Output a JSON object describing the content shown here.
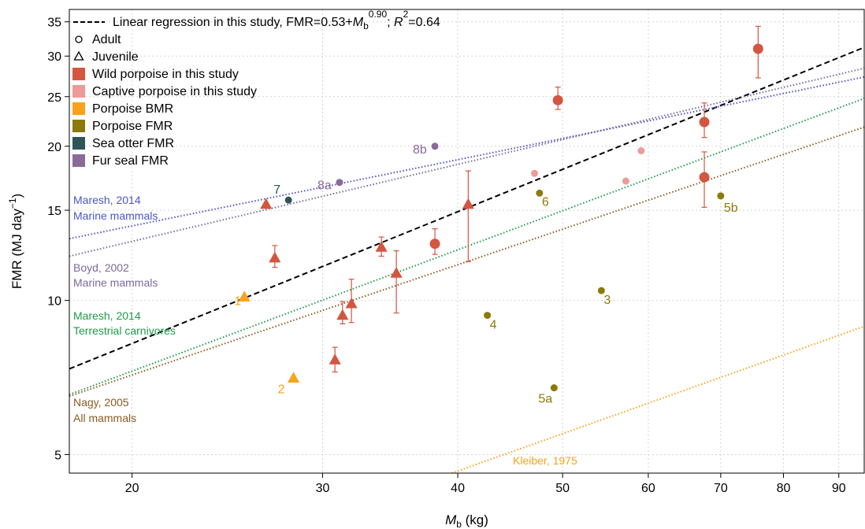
{
  "chart_data": {
    "type": "scatter",
    "xlabel": "Mb (kg)",
    "ylabel": "FMR (MJ day−1)",
    "x_scale": "log",
    "y_scale": "log",
    "xlim": [
      17.5,
      95
    ],
    "ylim": [
      4.6,
      37
    ],
    "x_ticks": [
      20,
      30,
      40,
      50,
      60,
      70,
      80,
      90
    ],
    "y_ticks": [
      5,
      10,
      15,
      20,
      25,
      30,
      35
    ],
    "grid": true,
    "legend_position": "top-left",
    "legend": [
      {
        "key": "regression",
        "marker": "dashed-line",
        "color": "#000000",
        "parts": [
          {
            "t": "Linear regression in this study, FMR=0.53+"
          },
          {
            "t": "M",
            "style": "italic"
          },
          {
            "t": "b",
            "style": "sub"
          },
          {
            "t": "0.90",
            "style": "sup"
          },
          {
            "t": "; "
          },
          {
            "t": "R",
            "style": "italic"
          },
          {
            "t": "2",
            "style": "sup"
          },
          {
            "t": "=0.64"
          }
        ]
      },
      {
        "key": "adult",
        "marker": "open-circle",
        "color": "#000000",
        "label": "Adult"
      },
      {
        "key": "juvenile",
        "marker": "open-triangle",
        "color": "#000000",
        "label": "Juvenile"
      },
      {
        "key": "wild",
        "marker": "square",
        "color": "#d35640",
        "label": "Wild porpoise in this study"
      },
      {
        "key": "captive",
        "marker": "square",
        "color": "#ee9a98",
        "label": "Captive porpoise in this study"
      },
      {
        "key": "bmr",
        "marker": "square",
        "color": "#f8a31b",
        "label": "Porpoise BMR"
      },
      {
        "key": "pfmr",
        "marker": "square",
        "color": "#8b7a0a",
        "label": "Porpoise FMR"
      },
      {
        "key": "otter",
        "marker": "square",
        "color": "#2f5458",
        "label": "Sea otter FMR"
      },
      {
        "key": "furseal",
        "marker": "square",
        "color": "#8a6a9b",
        "label": "Fur seal FMR"
      }
    ],
    "series": [
      {
        "name": "Wild porpoise in this study",
        "color": "#d35640",
        "points": [
          {
            "x": 26.6,
            "y": 15.4,
            "shape": "triangle"
          },
          {
            "x": 27.1,
            "y": 12.1,
            "shape": "triangle",
            "err": [
              11.6,
              12.8
            ]
          },
          {
            "x": 30.8,
            "y": 7.65,
            "shape": "triangle",
            "err": [
              7.25,
              8.1
            ]
          },
          {
            "x": 31.3,
            "y": 9.35,
            "shape": "triangle",
            "err": [
              9.0,
              9.95
            ]
          },
          {
            "x": 31.9,
            "y": 9.85,
            "shape": "triangle",
            "err": [
              9.05,
              11.0
            ]
          },
          {
            "x": 34.0,
            "y": 12.7,
            "shape": "triangle",
            "err": [
              12.2,
              13.3
            ]
          },
          {
            "x": 35.1,
            "y": 11.3,
            "shape": "triangle",
            "err": [
              9.45,
              12.5
            ]
          },
          {
            "x": 40.9,
            "y": 15.4,
            "shape": "triangle",
            "err": [
              11.9,
              17.9
            ]
          },
          {
            "x": 38.1,
            "y": 12.9,
            "shape": "circle",
            "err": [
              12.3,
              13.8
            ]
          },
          {
            "x": 49.5,
            "y": 24.6,
            "shape": "circle",
            "err": [
              23.6,
              26.1
            ]
          },
          {
            "x": 67.6,
            "y": 22.3,
            "shape": "circle",
            "err": [
              20.8,
              24.3
            ]
          },
          {
            "x": 67.6,
            "y": 17.4,
            "shape": "circle",
            "err": [
              15.2,
              19.5
            ]
          },
          {
            "x": 75.8,
            "y": 31.0,
            "shape": "circle",
            "err": [
              27.2,
              34.3
            ]
          }
        ]
      },
      {
        "name": "Captive porpoise in this study",
        "color": "#ee9a98",
        "points": [
          {
            "x": 47.1,
            "y": 17.7,
            "shape": "circle-small"
          },
          {
            "x": 57.2,
            "y": 17.1,
            "shape": "circle-small"
          },
          {
            "x": 59.1,
            "y": 19.6,
            "shape": "circle-small"
          }
        ]
      },
      {
        "name": "Porpoise BMR",
        "color": "#f8a31b",
        "points": [
          {
            "x": 25.4,
            "y": 10.15,
            "shape": "triangle",
            "label": "1"
          },
          {
            "x": 28.2,
            "y": 7.05,
            "shape": "triangle",
            "label": "2"
          }
        ]
      },
      {
        "name": "Porpoise FMR",
        "color": "#8b7a0a",
        "points": [
          {
            "x": 54.3,
            "y": 10.45,
            "shape": "circle-small",
            "label": "3"
          },
          {
            "x": 42.6,
            "y": 9.35,
            "shape": "circle-small",
            "label": "4"
          },
          {
            "x": 49.1,
            "y": 6.75,
            "shape": "circle-small",
            "label": "5a"
          },
          {
            "x": 70.0,
            "y": 16.0,
            "shape": "circle-small",
            "label": "5b"
          },
          {
            "x": 47.6,
            "y": 16.2,
            "shape": "circle-small",
            "label": "6"
          }
        ]
      },
      {
        "name": "Sea otter FMR",
        "color": "#2f5458",
        "points": [
          {
            "x": 27.9,
            "y": 15.7,
            "shape": "circle-small",
            "label": "7"
          }
        ]
      },
      {
        "name": "Fur seal FMR",
        "color": "#8a6a9b",
        "points": [
          {
            "x": 31.1,
            "y": 17.0,
            "shape": "circle-small",
            "label": "8a"
          },
          {
            "x": 38.1,
            "y": 20.0,
            "shape": "circle-small",
            "label": "8b"
          }
        ]
      }
    ],
    "lines": [
      {
        "name": "regression",
        "color": "#000000",
        "dash": "dashed",
        "from": [
          17.5,
          7.35
        ],
        "to": [
          95,
          31.2
        ]
      },
      {
        "name": "Maresh, 2014 Marine mammals",
        "color": "#4b55c8",
        "dash": "dotted",
        "from": [
          17.5,
          13.2
        ],
        "to": [
          95,
          27.3
        ],
        "label": [
          "Maresh, 2014",
          "Marine mammals"
        ]
      },
      {
        "name": "Boyd, 2002 Marine mammals",
        "color": "#7a6a9c",
        "dash": "dotted",
        "from": [
          17.5,
          12.2
        ],
        "to": [
          95,
          28.4
        ],
        "label": [
          "Boyd, 2002",
          "Marine mammals"
        ]
      },
      {
        "name": "Maresh, 2014 Terrestrial carnivores",
        "color": "#1f9a4b",
        "dash": "dotted",
        "from": [
          17.5,
          6.55
        ],
        "to": [
          95,
          24.8
        ],
        "label": [
          "Maresh, 2014",
          "Terrestrial carnivores"
        ]
      },
      {
        "name": "Nagy, 2005 All mammals",
        "color": "#8a5a24",
        "dash": "dotted",
        "from": [
          17.5,
          6.5
        ],
        "to": [
          95,
          21.8
        ],
        "label": [
          "Nagy, 2005",
          "All mammals"
        ]
      },
      {
        "name": "Kleiber, 1975",
        "color": "#f8a31b",
        "dash": "dotted",
        "from": [
          39.5,
          4.6
        ],
        "to": [
          95,
          8.9
        ],
        "label": [
          "Kleiber, 1975"
        ]
      }
    ]
  }
}
